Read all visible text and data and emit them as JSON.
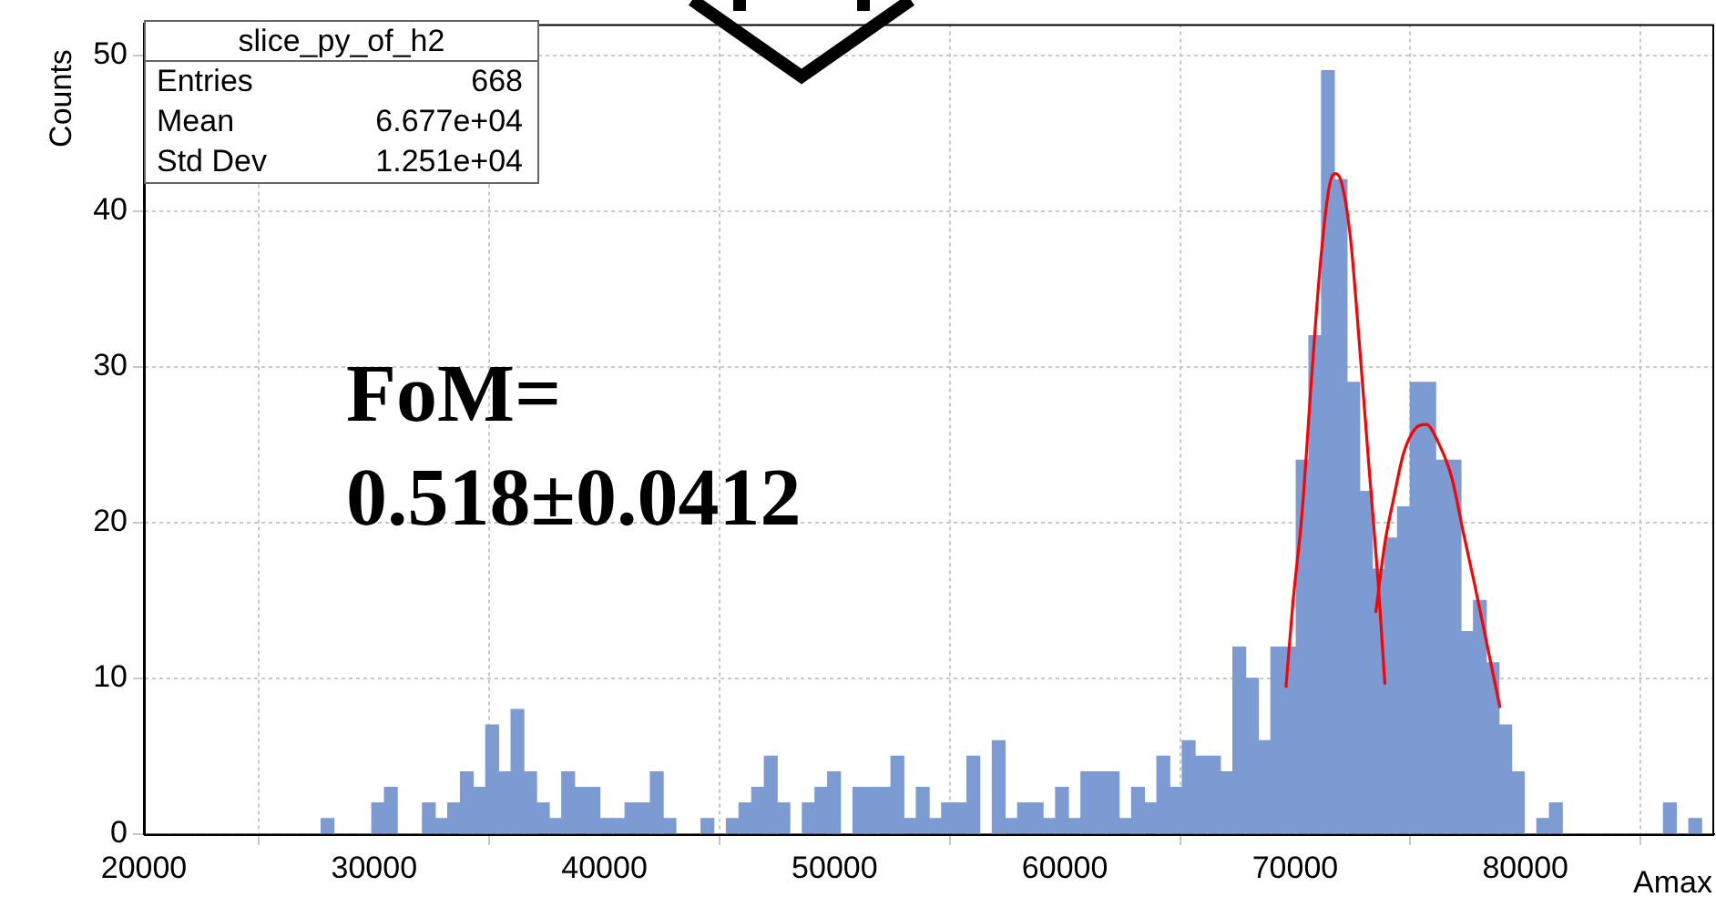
{
  "chart_data": {
    "type": "histogram",
    "title": "slice_py_of_h2",
    "xlabel": "Amax",
    "ylabel": "Counts",
    "bins": [
      20000,
      20550,
      21100,
      21650,
      22200,
      22750,
      23300,
      23850,
      24400,
      24950,
      25500,
      26050,
      26600,
      27150,
      27700,
      28250,
      28800,
      29350,
      29900,
      30450,
      31000,
      31550,
      32100,
      32650,
      33200,
      33750,
      34300,
      34850,
      35400,
      35950,
      36500,
      37050,
      37600,
      38150,
      38700,
      39250,
      39800,
      40350,
      40900,
      41450,
      42000,
      42550,
      43100,
      43650,
      44200,
      44750,
      45300,
      45850,
      46400,
      46950,
      47500,
      48050,
      48600,
      49150,
      49700,
      50250,
      50800,
      51350,
      51900,
      52450,
      53000,
      53550,
      54100,
      54650,
      55200,
      55750,
      56300,
      56850,
      57400,
      57950,
      58500,
      59050,
      59600,
      60150,
      60700,
      61250,
      61800,
      62350,
      62900,
      63450,
      64000,
      64550,
      65100,
      65650,
      66200,
      66750,
      67300,
      67850,
      68400,
      68950,
      69500,
      70050,
      70600,
      71150,
      71700,
      72250,
      72800,
      73350,
      73900,
      74450,
      75000,
      75550,
      76100,
      76650,
      77200,
      77750,
      78300,
      78850,
      79400,
      79950,
      80500,
      81050,
      81600,
      82150,
      82700,
      83250,
      83800,
      84350,
      84900,
      85450,
      86000,
      86550,
      87100,
      87650,
      88200
    ],
    "values": [
      0,
      0,
      0,
      0,
      0,
      0,
      0,
      0,
      0,
      0,
      0,
      0,
      0,
      0,
      1,
      0,
      0,
      0,
      2,
      3,
      0,
      0,
      2,
      1,
      2,
      4,
      3,
      7,
      4,
      8,
      4,
      2,
      1,
      4,
      3,
      3,
      1,
      1,
      2,
      2,
      4,
      1,
      0,
      0,
      1,
      0,
      1,
      2,
      3,
      5,
      2,
      0,
      2,
      3,
      4,
      0,
      3,
      3,
      3,
      5,
      1,
      3,
      1,
      2,
      2,
      5,
      0,
      6,
      1,
      2,
      2,
      1,
      3,
      1,
      4,
      4,
      4,
      1,
      3,
      2,
      5,
      3,
      6,
      5,
      5,
      4,
      12,
      10,
      6,
      12,
      12,
      24,
      32,
      49,
      42,
      29,
      22,
      17,
      19,
      21,
      29,
      29,
      24,
      24,
      13,
      15,
      11,
      7,
      4,
      0,
      1,
      2,
      0,
      0,
      0,
      0,
      0,
      0,
      0,
      0,
      2,
      0,
      1,
      0
    ],
    "color": "#7b9bd2",
    "series": [
      {
        "type": "line",
        "color": "#ff0000",
        "x": [
          69600,
          69900,
          70300,
          70700,
          71100,
          71500,
          71750,
          72000,
          72400,
          72800,
          73200,
          73600,
          73900
        ],
        "values": [
          9.4,
          14.8,
          20.6,
          29.0,
          36.7,
          41.7,
          42.4,
          41.9,
          38.3,
          31.3,
          23.7,
          16.3,
          9.6
        ]
      },
      {
        "type": "line",
        "color": "#ff0000",
        "x": [
          73500,
          73900,
          74300,
          74700,
          75200,
          75700,
          76200,
          76800,
          77300,
          77800,
          78400,
          78900
        ],
        "values": [
          14.2,
          18.7,
          21.7,
          24.4,
          26.0,
          26.3,
          25.2,
          22.9,
          19.4,
          16.0,
          11.7,
          8.1
        ]
      }
    ],
    "xlim": [
      20000,
      88200
    ],
    "xticks": [
      20000,
      30000,
      40000,
      50000,
      60000,
      70000,
      80000
    ],
    "ylim": [
      0,
      52
    ],
    "yticks": [
      0,
      10,
      20,
      30,
      40,
      50
    ],
    "grid": true,
    "annotations": [
      "Entries",
      "668",
      "Mean",
      "6.677e+04",
      "Std Dev",
      "1.251e+04",
      "FoM= 0.518±0.0412"
    ]
  }
}
